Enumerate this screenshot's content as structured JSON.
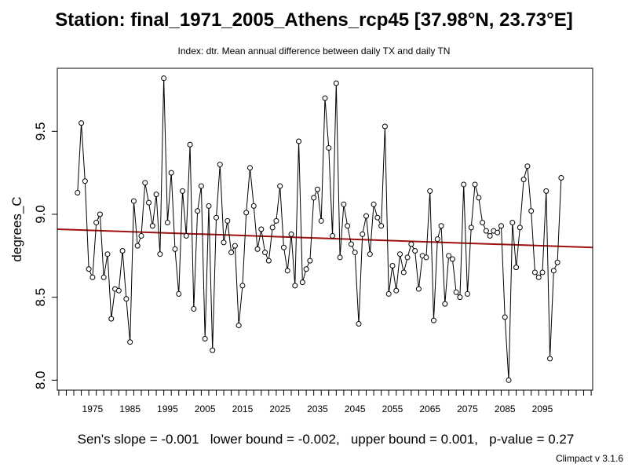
{
  "title": "Station: final_1971_2005_Athens_rcp45 [37.98°N, 23.73°E]",
  "subtitle": "Index: dtr. Mean annual difference between daily TX and daily TN",
  "stats_text": "Sen's slope = -0.001   lower bound = -0.002,   upper bound = 0.001,   p-value = 0.27",
  "version_text": "Climpact v 3.1.6",
  "colors": {
    "trend": "#a01010",
    "series": "#000000"
  },
  "chart_data": {
    "type": "line",
    "ylabel": "degrees_C",
    "xlabel": "",
    "xlim": [
      1965.6,
      2108.4
    ],
    "ylim": [
      7.94,
      9.88
    ],
    "xticks": [
      1975,
      1985,
      1995,
      2005,
      2015,
      2025,
      2035,
      2045,
      2055,
      2065,
      2075,
      2085,
      2095
    ],
    "xtick_labels": [
      "1975",
      "1985",
      "1995",
      "2005",
      "2015",
      "2025",
      "2035",
      "2045",
      "2055",
      "2065",
      "2075",
      "2085",
      "2095"
    ],
    "yticks": [
      8.0,
      8.5,
      9.0,
      9.5
    ],
    "ytick_labels": [
      "8.0",
      "8.5",
      "9.0",
      "9.5"
    ],
    "minor_ticks_every": 2,
    "grid": false,
    "series": [
      {
        "x_start": 1971,
        "values": [
          9.13,
          9.55,
          9.2,
          8.67,
          8.62,
          8.95,
          9.0,
          8.62,
          8.76,
          8.37,
          8.55,
          8.54,
          8.78,
          8.49,
          8.23,
          9.08,
          8.81,
          8.87,
          9.19,
          9.07,
          8.93,
          9.12,
          8.76,
          9.82,
          8.95,
          9.25,
          8.79,
          8.52,
          9.14,
          8.87,
          9.42,
          8.43,
          9.02,
          9.17,
          8.25,
          9.05,
          8.18,
          8.98,
          9.3,
          8.83,
          8.96,
          8.77,
          8.81,
          8.33,
          8.57,
          9.01,
          9.28,
          9.05,
          8.79,
          8.91,
          8.77,
          8.72,
          8.92,
          8.96,
          9.17,
          8.8,
          8.66,
          8.88,
          8.57,
          9.44,
          8.59,
          8.67,
          8.72,
          9.1,
          9.15,
          8.96,
          9.7,
          9.4,
          8.87,
          9.79,
          8.74,
          9.06,
          8.93,
          8.82,
          8.77,
          8.34,
          8.88,
          8.99,
          8.76,
          9.06,
          8.98,
          8.93,
          9.53,
          8.52,
          8.69,
          8.54,
          8.76,
          8.65,
          8.74,
          8.82,
          8.78,
          8.55,
          8.75,
          8.74,
          9.14,
          8.36,
          8.85,
          8.93,
          8.46,
          8.75,
          8.73,
          8.53,
          8.5,
          9.18,
          8.52,
          8.92,
          9.18,
          9.1,
          8.95,
          8.9,
          8.87,
          8.9,
          8.89,
          8.93,
          8.38,
          8.0,
          8.95,
          8.68,
          8.92,
          9.21,
          9.29,
          9.02,
          8.65,
          8.62,
          8.65,
          9.14,
          8.13,
          8.66,
          8.71,
          9.22
        ]
      }
    ],
    "trend": {
      "x": [
        1965.6,
        2108.4
      ],
      "y": [
        8.91,
        8.8
      ]
    }
  }
}
